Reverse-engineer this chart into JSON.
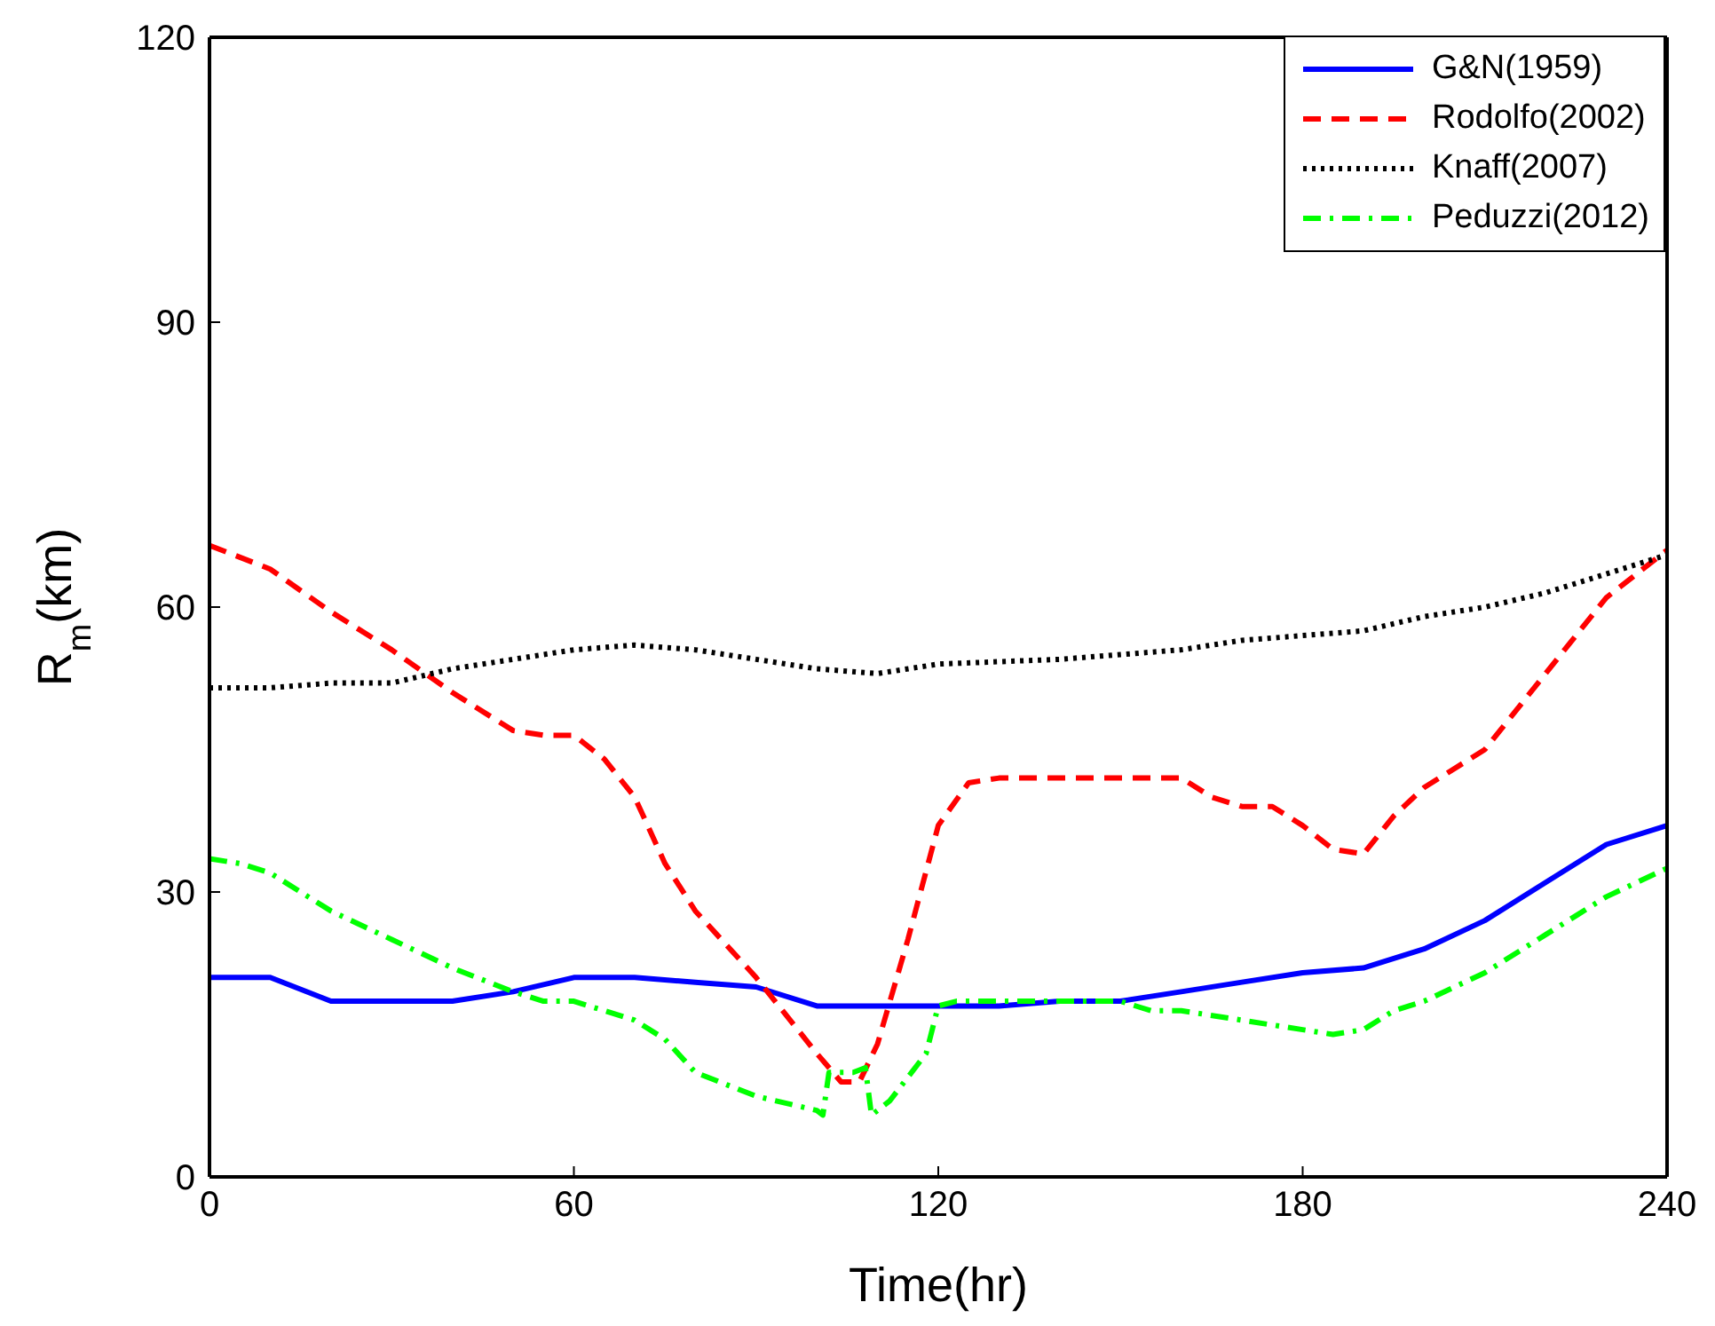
{
  "chart_data": {
    "type": "line",
    "xlabel": "Time(hr)",
    "ylabel": "R$_{m}$(km)",
    "xlim": [
      0,
      240
    ],
    "xticks": [
      0,
      60,
      120,
      180,
      240
    ],
    "ylim": [
      0,
      120
    ],
    "yticks": [
      0,
      30,
      60,
      90,
      120
    ],
    "legend": "top right",
    "marker": "none",
    "series": [
      {
        "name": "G&N(1959)",
        "color": "#0000ff",
        "line_style": "solid",
        "x": [
          0,
          10,
          20,
          30,
          40,
          50,
          60,
          70,
          80,
          90,
          100,
          110,
          120,
          130,
          140,
          150,
          160,
          170,
          180,
          190,
          200,
          210,
          220,
          230,
          240
        ],
        "values": [
          21,
          21,
          18.5,
          18.5,
          18.5,
          19.5,
          21,
          21,
          20.5,
          20,
          18,
          18,
          18,
          18,
          18.5,
          18.5,
          19.5,
          20.5,
          21.5,
          22,
          24,
          27,
          31,
          35,
          37
        ]
      },
      {
        "name": "Rodolfo(2002)",
        "color": "#ff0000",
        "line_style": "dashed",
        "x": [
          0,
          10,
          20,
          30,
          40,
          50,
          55,
          60,
          65,
          70,
          75,
          80,
          90,
          95,
          100,
          104,
          107,
          110,
          115,
          120,
          125,
          130,
          150,
          160,
          165,
          170,
          175,
          180,
          185,
          190,
          195,
          200,
          210,
          220,
          230,
          240
        ],
        "values": [
          66.5,
          64,
          59.5,
          55.5,
          51,
          47,
          46.5,
          46.5,
          44,
          40,
          33,
          28,
          21,
          17,
          13,
          10,
          10,
          14,
          25,
          37,
          41.5,
          42,
          42,
          42,
          40,
          39,
          39,
          37,
          34.5,
          34,
          38,
          41,
          45,
          53,
          61,
          66
        ]
      },
      {
        "name": "Knaff(2007)",
        "color": "#000000",
        "line_style": "dotted",
        "x": [
          0,
          10,
          20,
          30,
          40,
          50,
          60,
          70,
          80,
          90,
          100,
          110,
          120,
          140,
          150,
          160,
          170,
          180,
          190,
          200,
          210,
          220,
          230,
          240
        ],
        "values": [
          51.5,
          51.5,
          52,
          52,
          53.5,
          54.5,
          55.5,
          56,
          55.5,
          54.5,
          53.5,
          53,
          54,
          54.5,
          55,
          55.5,
          56.5,
          57,
          57.5,
          59,
          60,
          61.5,
          63.5,
          65.5
        ]
      },
      {
        "name": "Peduzzi(2012)",
        "color": "#00ff00",
        "line_style": "dashdot",
        "x": [
          0,
          5,
          10,
          20,
          30,
          40,
          50,
          55,
          60,
          70,
          75,
          80,
          90,
          100,
          101,
          102,
          106,
          108,
          109,
          112,
          118,
          120,
          123,
          140,
          150,
          155,
          160,
          170,
          180,
          185,
          190,
          195,
          200,
          210,
          220,
          230,
          240
        ],
        "values": [
          33.5,
          33,
          32,
          28,
          25,
          22,
          19.5,
          18.5,
          18.5,
          16.5,
          14.5,
          11,
          8.5,
          7,
          6.5,
          11,
          11,
          11.5,
          6.5,
          8,
          13,
          18,
          18.5,
          18.5,
          18.5,
          17.5,
          17.5,
          16.5,
          15.5,
          15,
          15.5,
          17.5,
          18.5,
          21.5,
          25.5,
          29.5,
          32.5
        ]
      }
    ]
  }
}
